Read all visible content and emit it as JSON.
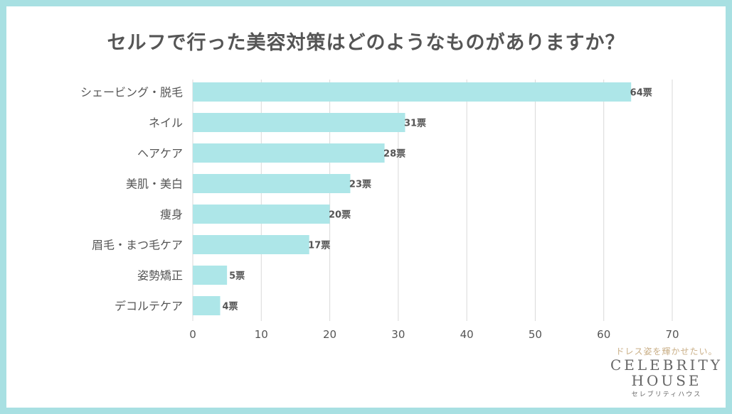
{
  "chart_data": {
    "type": "bar",
    "orientation": "horizontal",
    "title": "セルフで行った美容対策はどのようなものがありますか？",
    "categories": [
      "シェービング・脱毛",
      "ネイル",
      "ヘアケア",
      "美肌・美白",
      "痩身",
      "眉毛・まつ毛ケア",
      "姿勢矯正",
      "デコルテケア"
    ],
    "values": [
      64,
      31,
      28,
      23,
      20,
      17,
      5,
      4
    ],
    "value_suffix": "票",
    "xlim": [
      0,
      70
    ],
    "xticks": [
      0,
      10,
      20,
      30,
      40,
      50,
      60,
      70
    ],
    "xlabel": "",
    "ylabel": "",
    "grid": true,
    "bar_color": "#ade6e8",
    "grid_color": "#d9d9d9"
  },
  "branding": {
    "tagline": "ドレス姿を輝かせたい。",
    "line1": "CELEBRITY",
    "line2": "HOUSE",
    "kana": "セレブリティハウス"
  }
}
